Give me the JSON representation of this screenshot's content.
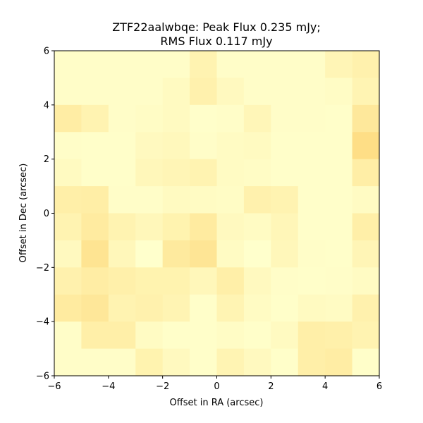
{
  "chart_data": {
    "type": "heatmap",
    "title_lines": [
      "ZTF22aalwbqe: Peak Flux 0.235 mJy;",
      "RMS Flux 0.117 mJy"
    ],
    "xlabel": "Offset in RA (arcsec)",
    "ylabel": "Offset in Dec (arcsec)",
    "xlim": [
      -6,
      6
    ],
    "ylim": [
      -6,
      6
    ],
    "xticks": [
      -6,
      -4,
      -2,
      0,
      2,
      4,
      6
    ],
    "yticks": [
      -6,
      -4,
      -2,
      0,
      2,
      4,
      6
    ],
    "xtick_labels": [
      "−6",
      "−4",
      "−2",
      "0",
      "2",
      "4",
      "6"
    ],
    "ytick_labels": [
      "−6",
      "−4",
      "−2",
      "0",
      "2",
      "4",
      "6"
    ],
    "colormap": [
      "#ffffcc",
      "#fff2ae",
      "#fee391",
      "#fec44f"
    ],
    "value_range": [
      0,
      1
    ],
    "grid": false,
    "rows_top_to_bottom": [
      [
        0.05,
        0.05,
        0.05,
        0.05,
        0.05,
        0.3,
        0.05,
        0.05,
        0.05,
        0.05,
        0.25,
        0.35
      ],
      [
        0.05,
        0.05,
        0.05,
        0.05,
        0.12,
        0.35,
        0.15,
        0.05,
        0.05,
        0.05,
        0.08,
        0.28
      ],
      [
        0.45,
        0.3,
        0.05,
        0.08,
        0.12,
        0.02,
        0.05,
        0.22,
        0.05,
        0.05,
        0.03,
        0.55
      ],
      [
        0.05,
        0.03,
        0.03,
        0.15,
        0.18,
        0.05,
        0.1,
        0.12,
        0.03,
        0.03,
        0.03,
        0.72
      ],
      [
        0.12,
        0.03,
        0.03,
        0.2,
        0.25,
        0.3,
        0.1,
        0.08,
        0.03,
        0.03,
        0.03,
        0.42
      ],
      [
        0.4,
        0.42,
        0.05,
        0.05,
        0.12,
        0.1,
        0.08,
        0.35,
        0.3,
        0.03,
        0.03,
        0.1
      ],
      [
        0.3,
        0.5,
        0.3,
        0.2,
        0.32,
        0.5,
        0.15,
        0.1,
        0.22,
        0.03,
        0.03,
        0.4
      ],
      [
        0.15,
        0.65,
        0.2,
        0.0,
        0.52,
        0.62,
        0.1,
        0.0,
        0.2,
        0.05,
        0.03,
        0.25
      ],
      [
        0.35,
        0.45,
        0.38,
        0.32,
        0.32,
        0.2,
        0.4,
        0.15,
        0.05,
        0.03,
        0.05,
        0.1
      ],
      [
        0.5,
        0.58,
        0.3,
        0.35,
        0.28,
        0.03,
        0.28,
        0.1,
        0.03,
        0.12,
        0.1,
        0.35
      ],
      [
        0.05,
        0.4,
        0.4,
        0.1,
        0.03,
        0.03,
        0.08,
        0.03,
        0.12,
        0.4,
        0.38,
        0.3
      ],
      [
        0.05,
        0.05,
        0.05,
        0.32,
        0.15,
        0.03,
        0.28,
        0.15,
        0.03,
        0.4,
        0.45,
        0.03
      ]
    ]
  }
}
